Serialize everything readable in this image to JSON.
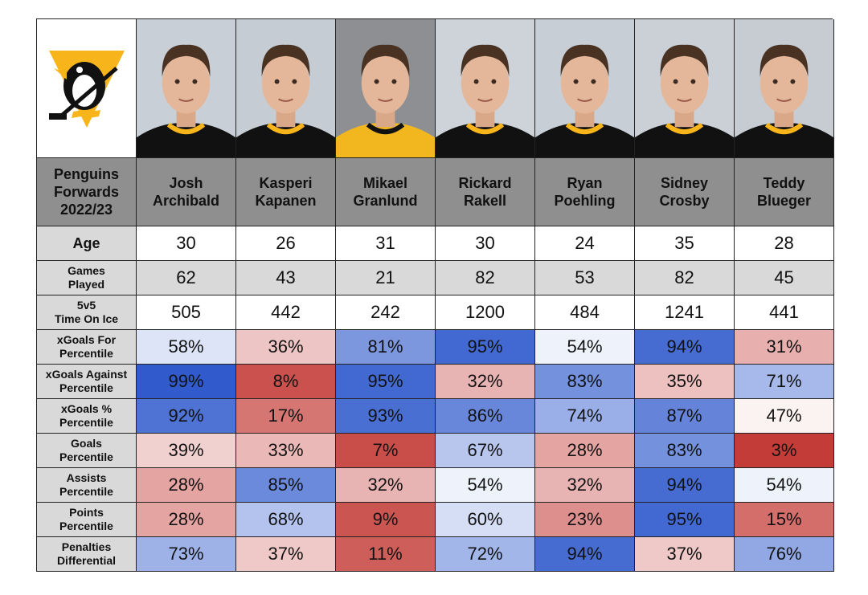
{
  "header": {
    "title_lines": [
      "Penguins",
      "Forwards",
      "2022/23"
    ]
  },
  "players": [
    {
      "first": "Josh",
      "last": "Archibald"
    },
    {
      "first": "Kasperi",
      "last": "Kapanen"
    },
    {
      "first": "Mikael",
      "last": "Granlund"
    },
    {
      "first": "Rickard",
      "last": "Rakell"
    },
    {
      "first": "Ryan",
      "last": "Poehling"
    },
    {
      "first": "Sidney",
      "last": "Crosby"
    },
    {
      "first": "Teddy",
      "last": "Blueger"
    }
  ],
  "rows": [
    {
      "label": [
        "Age"
      ],
      "style": "white",
      "values": [
        "30",
        "26",
        "31",
        "30",
        "24",
        "35",
        "28"
      ]
    },
    {
      "label": [
        "Games",
        "Played"
      ],
      "style": "grey",
      "values": [
        "62",
        "43",
        "21",
        "82",
        "53",
        "82",
        "45"
      ]
    },
    {
      "label": [
        "5v5",
        "Time On Ice"
      ],
      "style": "white",
      "values": [
        "505",
        "442",
        "242",
        "1200",
        "484",
        "1241",
        "441"
      ]
    },
    {
      "label": [
        "xGoals For",
        "Percentile"
      ],
      "style": "pct",
      "values": [
        "58%",
        "36%",
        "81%",
        "95%",
        "54%",
        "94%",
        "31%"
      ]
    },
    {
      "label": [
        "xGoals Against",
        "Percentile"
      ],
      "style": "pct",
      "values": [
        "99%",
        "8%",
        "95%",
        "32%",
        "83%",
        "35%",
        "71%"
      ]
    },
    {
      "label": [
        "xGoals %",
        "Percentile"
      ],
      "style": "pct",
      "values": [
        "92%",
        "17%",
        "93%",
        "86%",
        "74%",
        "87%",
        "47%"
      ]
    },
    {
      "label": [
        "Goals",
        "Percentile"
      ],
      "style": "pct",
      "values": [
        "39%",
        "33%",
        "7%",
        "67%",
        "28%",
        "83%",
        "3%"
      ]
    },
    {
      "label": [
        "Assists",
        "Percentile"
      ],
      "style": "pct",
      "values": [
        "28%",
        "85%",
        "32%",
        "54%",
        "32%",
        "94%",
        "54%"
      ]
    },
    {
      "label": [
        "Points",
        "Percentile"
      ],
      "style": "pct",
      "values": [
        "28%",
        "68%",
        "9%",
        "60%",
        "23%",
        "95%",
        "15%"
      ]
    },
    {
      "label": [
        "Penalties",
        "Differential"
      ],
      "style": "pct",
      "values": [
        "73%",
        "37%",
        "11%",
        "72%",
        "94%",
        "37%",
        "76%"
      ]
    }
  ],
  "chart_data": {
    "type": "table",
    "title": "Penguins Forwards 2022/23",
    "columns": [
      "Josh Archibald",
      "Kasperi Kapanen",
      "Mikael Granlund",
      "Rickard Rakell",
      "Ryan Poehling",
      "Sidney Crosby",
      "Teddy Blueger"
    ],
    "metrics": {
      "Age": [
        30,
        26,
        31,
        30,
        24,
        35,
        28
      ],
      "Games Played": [
        62,
        43,
        21,
        82,
        53,
        82,
        45
      ],
      "5v5 Time On Ice": [
        505,
        442,
        242,
        1200,
        484,
        1241,
        441
      ],
      "xGoals For Percentile": [
        58,
        36,
        81,
        95,
        54,
        94,
        31
      ],
      "xGoals Against Percentile": [
        99,
        8,
        95,
        32,
        83,
        35,
        71
      ],
      "xGoals % Percentile": [
        92,
        17,
        93,
        86,
        74,
        87,
        47
      ],
      "Goals Percentile": [
        39,
        33,
        7,
        67,
        28,
        83,
        3
      ],
      "Assists Percentile": [
        28,
        85,
        32,
        54,
        32,
        94,
        54
      ],
      "Points Percentile": [
        28,
        68,
        9,
        60,
        23,
        95,
        15
      ],
      "Penalties Differential": [
        73,
        37,
        11,
        72,
        94,
        37,
        76
      ]
    },
    "color_scale": {
      "low": "#c0302b",
      "mid": "#ffffff",
      "high": "#2d58cc"
    }
  }
}
